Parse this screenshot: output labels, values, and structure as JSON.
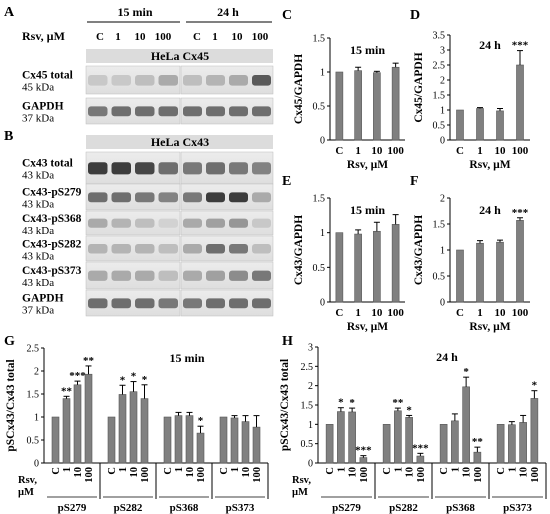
{
  "panels": {
    "A": "A",
    "B": "B",
    "C": "C",
    "D": "D",
    "E": "E",
    "F": "F",
    "G": "G",
    "H": "H"
  },
  "blot": {
    "times": [
      "15 min",
      "24 h"
    ],
    "rsv_label": "Rsv, µM",
    "doses": [
      "C",
      "1",
      "10",
      "100"
    ],
    "hela_cx45": "HeLa Cx45",
    "hela_cx43": "HeLa Cx43",
    "rows_A": [
      {
        "name": "Cx45 total",
        "kda": "45 kDa"
      },
      {
        "name": "GAPDH",
        "kda": "37 kDa"
      }
    ],
    "rows_B": [
      {
        "name": "Cx43 total",
        "kda": "43 kDa"
      },
      {
        "name": "Cx43-pS279",
        "kda": "43 kDa"
      },
      {
        "name": "Cx43-pS368",
        "kda": "43 kDa"
      },
      {
        "name": "Cx43-pS282",
        "kda": "43 kDa"
      },
      {
        "name": "Cx43-pS373",
        "kda": "43 kDa"
      },
      {
        "name": "GAPDH",
        "kda": "37 kDa"
      }
    ]
  },
  "chart_data": [
    {
      "id": "C",
      "type": "bar",
      "title": "15 min",
      "ylabel": "Cx45/GAPDH",
      "xlabel": "Rsv, µM",
      "categories": [
        "C",
        "1",
        "10",
        "100"
      ],
      "values": [
        1.0,
        1.02,
        0.99,
        1.07
      ],
      "errors": [
        0,
        0.05,
        0.02,
        0.06
      ],
      "sig": [
        "",
        "",
        "",
        ""
      ],
      "ylim": [
        0,
        1.5
      ],
      "yticks": [
        "0",
        "0.5",
        "1",
        "1.5"
      ]
    },
    {
      "id": "D",
      "type": "bar",
      "title": "24 h",
      "ylabel": "Cx45/GAPDH",
      "xlabel": "Rsv, µM",
      "categories": [
        "C",
        "1",
        "10",
        "100"
      ],
      "values": [
        1.0,
        1.05,
        0.97,
        2.5
      ],
      "errors": [
        0,
        0.03,
        0.08,
        0.48
      ],
      "sig": [
        "",
        "",
        "",
        "***"
      ],
      "ylim": [
        0,
        3.5
      ],
      "yticks": [
        "0",
        "0.5",
        "1",
        "1.5",
        "2",
        "2.5",
        "3",
        "3.5"
      ]
    },
    {
      "id": "E",
      "type": "bar",
      "title": "15 min",
      "ylabel": "Cx43/GAPDH",
      "xlabel": "Rsv, µM",
      "categories": [
        "C",
        "1",
        "10",
        "100"
      ],
      "values": [
        1.0,
        0.98,
        1.02,
        1.12
      ],
      "errors": [
        0,
        0.06,
        0.13,
        0.14
      ],
      "sig": [
        "",
        "",
        "",
        ""
      ],
      "ylim": [
        0,
        1.5
      ],
      "yticks": [
        "0",
        "0.5",
        "1",
        "1.5"
      ]
    },
    {
      "id": "F",
      "type": "bar",
      "title": "24 h",
      "ylabel": "Cx43/GAPDH",
      "xlabel": "Rsv, µM",
      "categories": [
        "C",
        "1",
        "10",
        "100"
      ],
      "values": [
        1.0,
        1.13,
        1.15,
        1.57
      ],
      "errors": [
        0,
        0.05,
        0.04,
        0.05
      ],
      "sig": [
        "",
        "",
        "",
        "***"
      ],
      "ylim": [
        0,
        2
      ],
      "yticks": [
        "0",
        "0.5",
        "1",
        "1.5",
        "2"
      ]
    },
    {
      "id": "G",
      "type": "bar",
      "title": "15 min",
      "ylabel": "pSCx43/Cx43 total",
      "xlabel": "Rsv, µM",
      "doses": [
        "C",
        "1",
        "10",
        "100"
      ],
      "groups": [
        "pS279",
        "pS282",
        "pS368",
        "pS373"
      ],
      "values": [
        [
          1.0,
          1.4,
          1.7,
          1.93
        ],
        [
          1.0,
          1.49,
          1.55,
          1.4
        ],
        [
          1.0,
          1.03,
          1.03,
          0.65
        ],
        [
          1.0,
          0.98,
          0.9,
          0.78
        ]
      ],
      "errors": [
        [
          0,
          0.05,
          0.08,
          0.18
        ],
        [
          0,
          0.2,
          0.22,
          0.3
        ],
        [
          0,
          0.07,
          0.07,
          0.15
        ],
        [
          0,
          0.05,
          0.13,
          0.25
        ]
      ],
      "sig": [
        [
          "",
          "**",
          "***",
          "**"
        ],
        [
          "",
          "*",
          "*",
          "*"
        ],
        [
          "",
          "",
          "",
          "*"
        ],
        [
          "",
          "",
          "",
          ""
        ]
      ],
      "ylim": [
        0,
        2.5
      ],
      "yticks": [
        "0",
        "0.5",
        "1",
        "1.5",
        "2",
        "2.5"
      ]
    },
    {
      "id": "H",
      "type": "bar",
      "title": "24 h",
      "ylabel": "pSCx43/Cx43 total",
      "xlabel": "Rsv, µM",
      "doses": [
        "C",
        "1",
        "10",
        "100"
      ],
      "groups": [
        "pS279",
        "pS282",
        "pS368",
        "pS373"
      ],
      "values": [
        [
          1.0,
          1.33,
          1.32,
          0.14
        ],
        [
          1.0,
          1.35,
          1.18,
          0.18
        ],
        [
          1.0,
          1.09,
          1.97,
          0.28
        ],
        [
          1.0,
          0.99,
          1.05,
          1.67
        ]
      ],
      "errors": [
        [
          0,
          0.1,
          0.1,
          0.05
        ],
        [
          0,
          0.07,
          0.05,
          0.07
        ],
        [
          0,
          0.18,
          0.25,
          0.13
        ],
        [
          0,
          0.08,
          0.18,
          0.2
        ]
      ],
      "sig": [
        [
          "",
          "*",
          "*",
          "***"
        ],
        [
          "",
          "**",
          "*",
          "***"
        ],
        [
          "",
          "",
          "*",
          "**"
        ],
        [
          "",
          "",
          "",
          "*"
        ]
      ],
      "ylim": [
        0,
        3
      ],
      "yticks": [
        "0",
        "0.5",
        "1",
        "1.5",
        "2",
        "2.5",
        "3"
      ]
    }
  ]
}
